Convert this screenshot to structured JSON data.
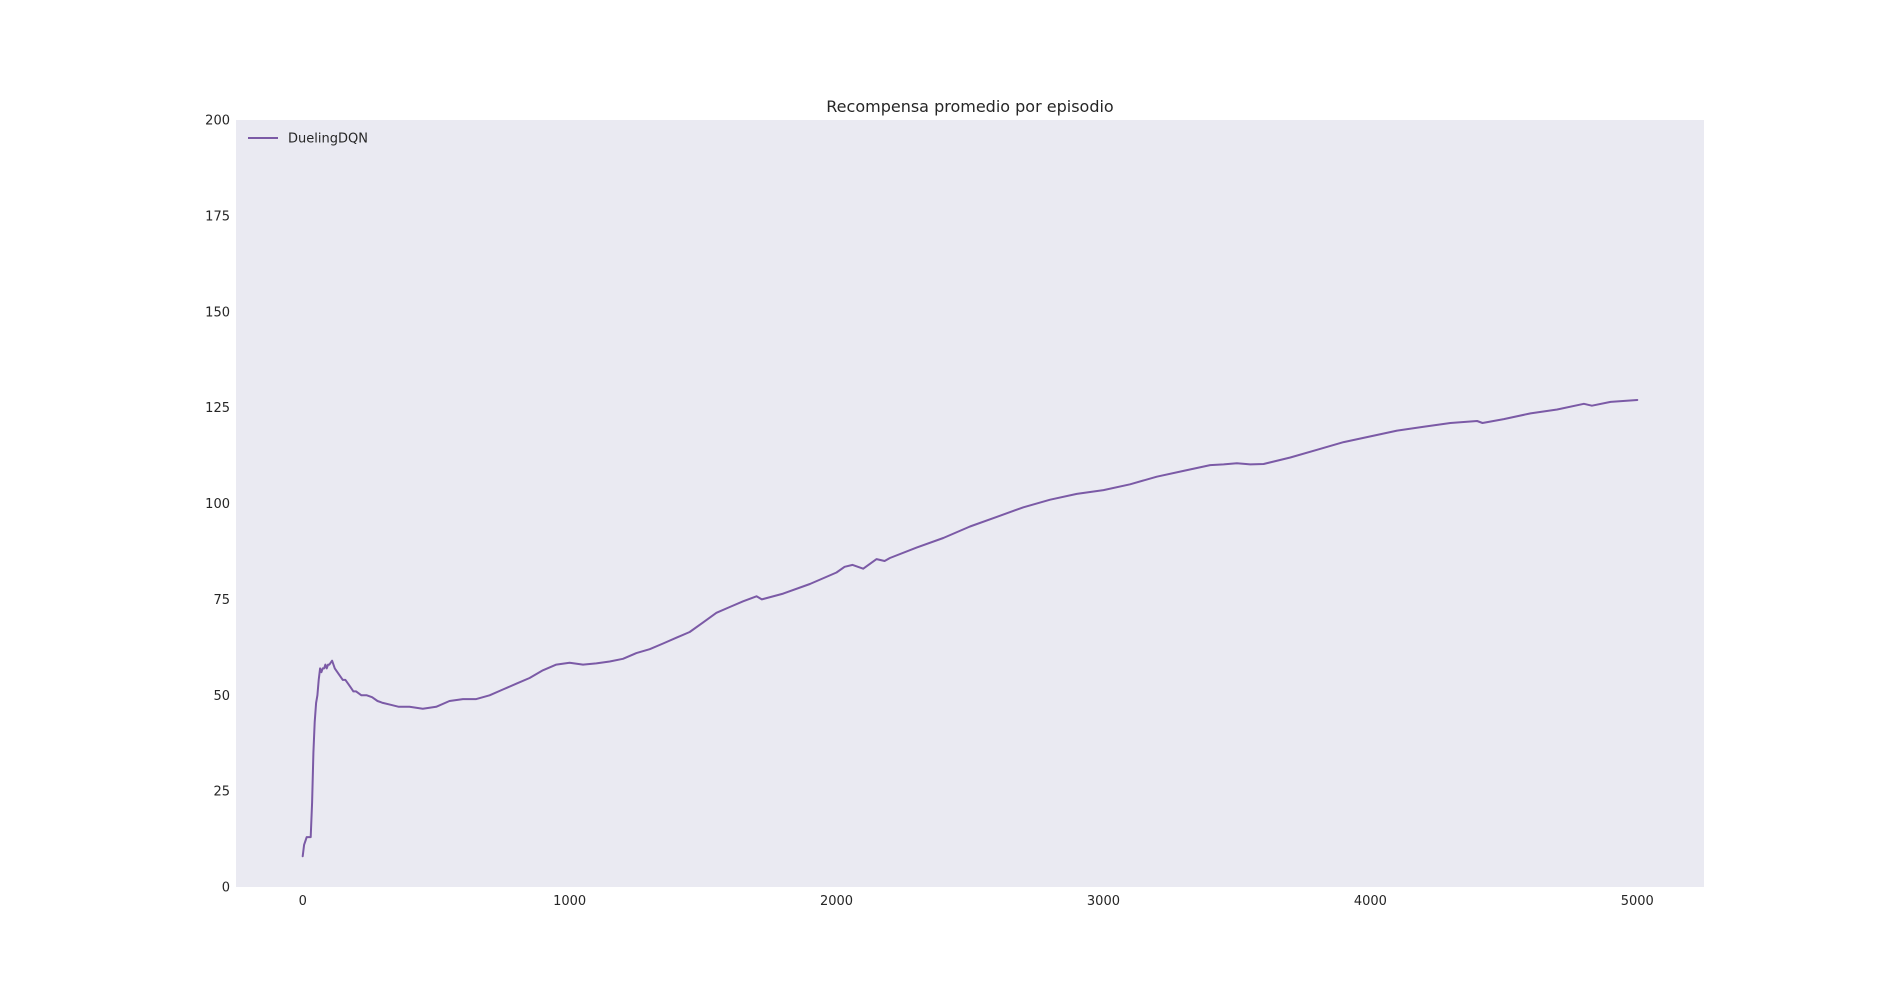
{
  "chart_data": {
    "type": "line",
    "title": "Recompensa promedio por episodio",
    "xlabel": "",
    "ylabel": "",
    "xlim": [
      -250,
      5250
    ],
    "ylim": [
      0,
      200
    ],
    "xticks": [
      0,
      1000,
      2000,
      3000,
      4000,
      5000
    ],
    "yticks": [
      0,
      25,
      50,
      75,
      100,
      125,
      150,
      175,
      200
    ],
    "grid": false,
    "legend": "top-left",
    "background_color": "#eaeaf2",
    "series": [
      {
        "name": "DuelingDQN",
        "color": "#7b5aa6",
        "x": [
          0,
          5,
          10,
          15,
          20,
          30,
          35,
          40,
          45,
          50,
          55,
          60,
          65,
          70,
          75,
          80,
          85,
          90,
          95,
          100,
          110,
          120,
          130,
          140,
          150,
          160,
          170,
          180,
          190,
          200,
          220,
          240,
          260,
          280,
          300,
          330,
          360,
          400,
          450,
          500,
          550,
          600,
          650,
          700,
          750,
          800,
          850,
          900,
          950,
          1000,
          1050,
          1100,
          1150,
          1200,
          1250,
          1300,
          1350,
          1400,
          1450,
          1500,
          1550,
          1600,
          1650,
          1700,
          1720,
          1800,
          1900,
          2000,
          2030,
          2060,
          2100,
          2130,
          2150,
          2180,
          2200,
          2300,
          2400,
          2500,
          2600,
          2700,
          2800,
          2900,
          3000,
          3100,
          3200,
          3300,
          3400,
          3450,
          3500,
          3550,
          3600,
          3700,
          3800,
          3900,
          4000,
          4100,
          4200,
          4300,
          4400,
          4420,
          4500,
          4600,
          4700,
          4800,
          4830,
          4900,
          5000
        ],
        "values": [
          8,
          11,
          12,
          13,
          13,
          13,
          22,
          35,
          43,
          48,
          50,
          54,
          57,
          56,
          57,
          57,
          58,
          57,
          58,
          58,
          59,
          57,
          56,
          55,
          54,
          54,
          53,
          52,
          51,
          51,
          50,
          50,
          49.5,
          48.5,
          48,
          47.5,
          47,
          47,
          46.5,
          47,
          48.5,
          49,
          49,
          50,
          51.5,
          53,
          54.5,
          56.5,
          58,
          58.5,
          58,
          58.3,
          58.8,
          59.5,
          61,
          62,
          63.5,
          65,
          66.5,
          69,
          71.5,
          73,
          74.5,
          75.8,
          75,
          76.5,
          79,
          82,
          83.5,
          84,
          83,
          84.5,
          85.5,
          85,
          85.8,
          88.5,
          91,
          94,
          96.5,
          99,
          101,
          102.5,
          103.5,
          105,
          107,
          108.5,
          110,
          110.2,
          110.5,
          110.2,
          110.3,
          112,
          114,
          116,
          117.5,
          119,
          120,
          121,
          121.5,
          121,
          122,
          123.5,
          124.5,
          126,
          125.5,
          126.5,
          127
        ]
      }
    ]
  }
}
